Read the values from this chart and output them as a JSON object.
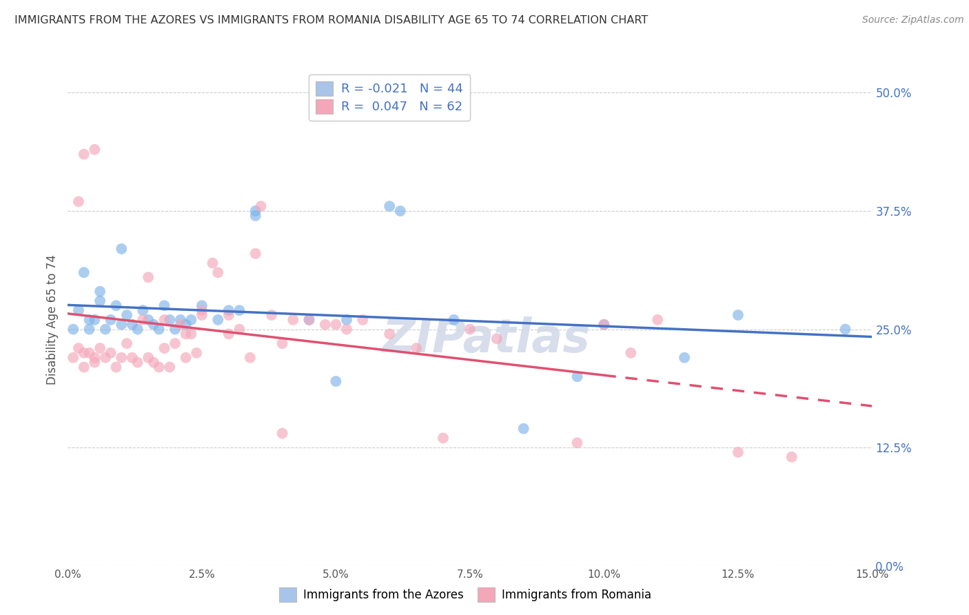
{
  "title": "IMMIGRANTS FROM THE AZORES VS IMMIGRANTS FROM ROMANIA DISABILITY AGE 65 TO 74 CORRELATION CHART",
  "source": "Source: ZipAtlas.com",
  "xlabel_vals": [
    0.0,
    2.5,
    5.0,
    7.5,
    10.0,
    12.5,
    15.0
  ],
  "ylabel_vals": [
    0.0,
    12.5,
    25.0,
    37.5,
    50.0
  ],
  "xmin": 0.0,
  "xmax": 15.0,
  "ymin": 0.0,
  "ymax": 52.0,
  "ylabel": "Disability Age 65 to 74",
  "watermark": "ZIPatlas",
  "legend_label1": "R = -0.021   N = 44",
  "legend_label2": "R =  0.047   N = 62",
  "legend_color1": "#a8c4e8",
  "legend_color2": "#f4a7b9",
  "series1_color": "#7eb3e8",
  "series2_color": "#f4a7b9",
  "trendline1_color": "#4472c4",
  "trendline2_color": "#e05070",
  "azores_x": [
    0.1,
    0.2,
    0.3,
    0.4,
    0.5,
    0.6,
    0.7,
    0.8,
    0.9,
    1.0,
    1.0,
    1.1,
    1.2,
    1.3,
    1.4,
    1.5,
    1.6,
    1.7,
    1.8,
    1.9,
    2.0,
    2.1,
    2.2,
    2.3,
    2.5,
    3.0,
    3.5,
    3.5,
    4.5,
    5.0,
    5.2,
    6.0,
    6.2,
    7.2,
    8.5,
    9.5,
    10.0,
    11.5,
    12.5,
    14.5,
    2.8,
    3.2,
    0.4,
    0.6
  ],
  "azores_y": [
    25.0,
    27.0,
    31.0,
    25.0,
    26.0,
    28.0,
    25.0,
    26.0,
    27.5,
    25.5,
    33.5,
    26.5,
    25.5,
    25.0,
    27.0,
    26.0,
    25.5,
    25.0,
    27.5,
    26.0,
    25.0,
    26.0,
    25.5,
    26.0,
    27.5,
    27.0,
    37.5,
    37.0,
    26.0,
    19.5,
    26.0,
    38.0,
    37.5,
    26.0,
    14.5,
    20.0,
    25.5,
    22.0,
    26.5,
    25.0,
    26.0,
    27.0,
    26.0,
    29.0
  ],
  "romania_x": [
    0.1,
    0.2,
    0.3,
    0.3,
    0.4,
    0.5,
    0.5,
    0.6,
    0.7,
    0.8,
    0.9,
    1.0,
    1.1,
    1.2,
    1.3,
    1.4,
    1.5,
    1.6,
    1.7,
    1.8,
    1.9,
    2.0,
    2.1,
    2.2,
    2.3,
    2.5,
    2.7,
    3.0,
    3.2,
    3.4,
    3.5,
    3.8,
    4.0,
    4.5,
    5.0,
    5.5,
    6.0,
    7.0,
    7.5,
    8.0,
    9.5,
    10.0,
    10.5,
    11.0,
    12.5,
    13.5,
    2.5,
    2.8,
    3.0,
    1.5,
    4.2,
    5.2,
    6.5,
    4.8,
    3.6,
    4.0,
    2.2,
    2.4,
    1.8,
    0.5,
    0.3,
    0.2
  ],
  "romania_y": [
    22.0,
    23.0,
    22.5,
    21.0,
    22.5,
    22.0,
    21.5,
    23.0,
    22.0,
    22.5,
    21.0,
    22.0,
    23.5,
    22.0,
    21.5,
    26.0,
    22.0,
    21.5,
    21.0,
    23.0,
    21.0,
    23.5,
    25.5,
    22.0,
    24.5,
    27.0,
    32.0,
    26.5,
    25.0,
    22.0,
    33.0,
    26.5,
    23.5,
    26.0,
    25.5,
    26.0,
    24.5,
    13.5,
    25.0,
    24.0,
    13.0,
    25.5,
    22.5,
    26.0,
    12.0,
    11.5,
    26.5,
    31.0,
    24.5,
    30.5,
    26.0,
    25.0,
    23.0,
    25.5,
    38.0,
    14.0,
    24.5,
    22.5,
    26.0,
    44.0,
    43.5,
    38.5
  ]
}
